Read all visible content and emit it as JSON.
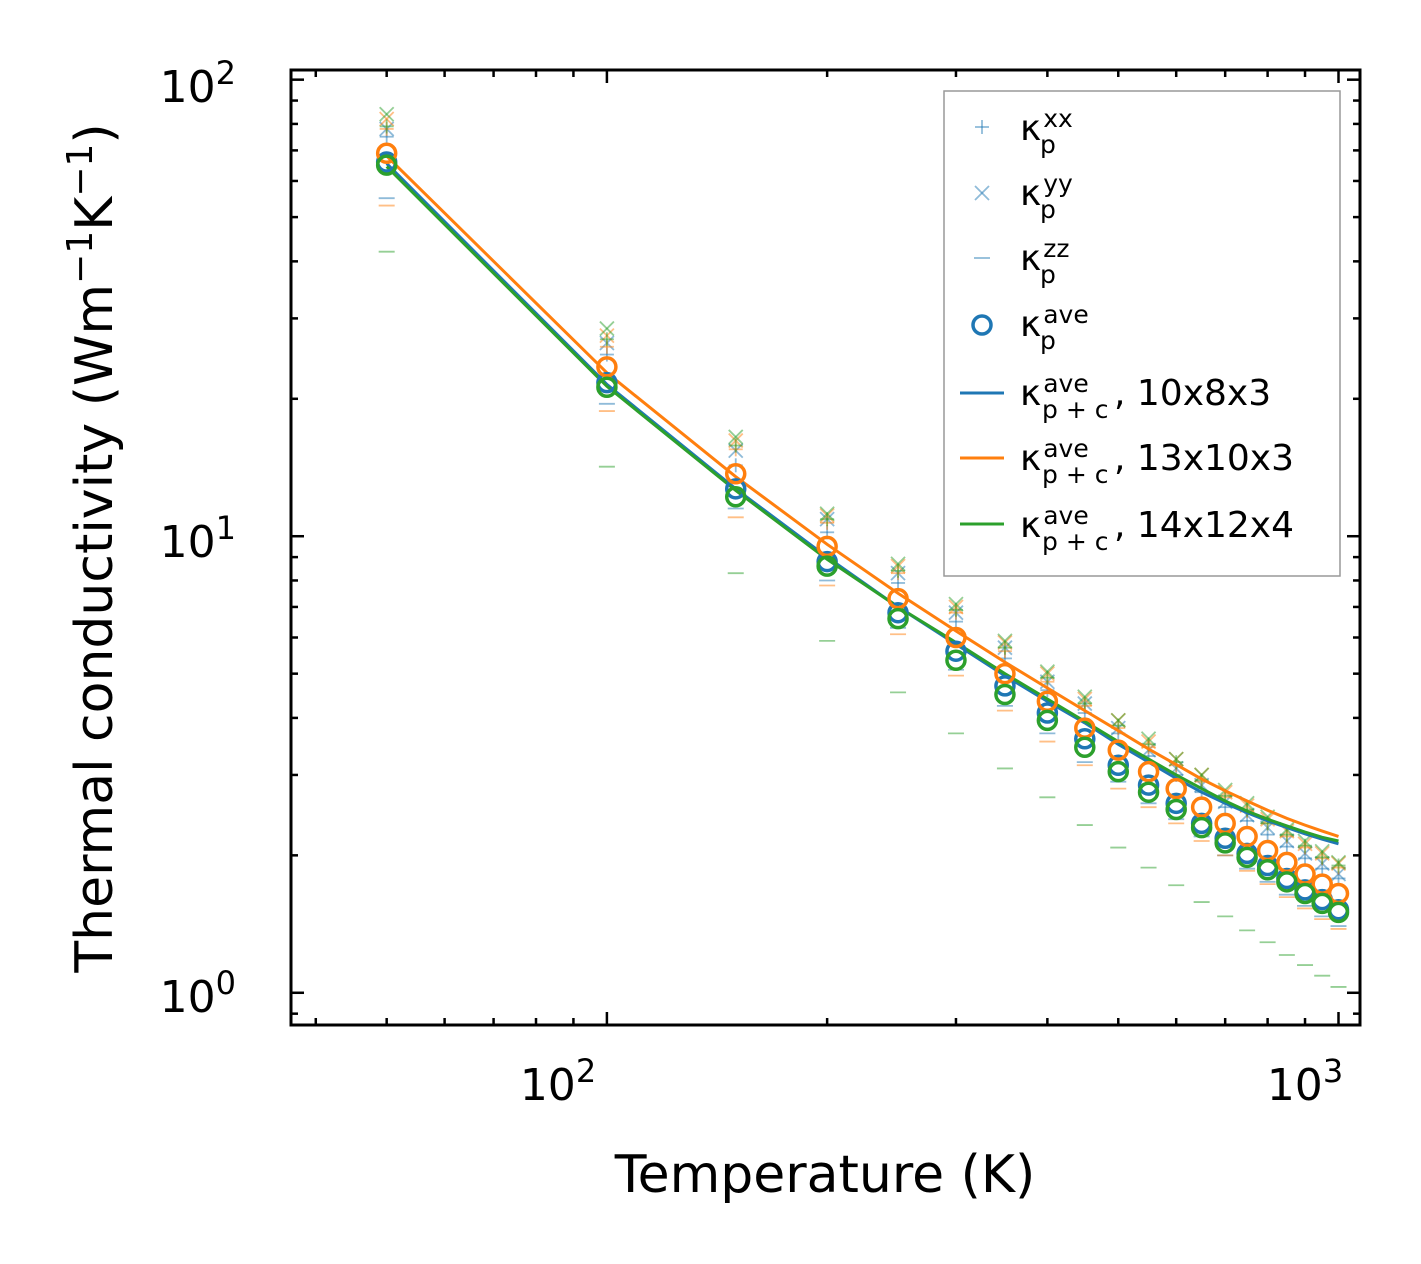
{
  "chart_data": {
    "type": "scatter",
    "xlabel": "Temperature (K)",
    "ylabel": "Thermal conductivity (Wm",
    "ylabel_sup1": "−1",
    "ylabel_mid": "K",
    "ylabel_sup2": "−1",
    "ylabel_end": ")",
    "xscale": "log",
    "yscale": "log",
    "xlim": [
      37,
      1070
    ],
    "ylim": [
      0.85,
      105
    ],
    "x_ticks": [
      {
        "value": 100,
        "base": "10",
        "exp": "2"
      },
      {
        "value": 1000,
        "base": "10",
        "exp": "3"
      }
    ],
    "y_ticks": [
      {
        "value": 1,
        "base": "10",
        "exp": "0"
      },
      {
        "value": 10,
        "base": "10",
        "exp": "1"
      },
      {
        "value": 100,
        "base": "10",
        "exp": "2"
      }
    ],
    "legend_position": "top-right",
    "x": [
      50,
      100,
      150,
      200,
      250,
      300,
      350,
      400,
      450,
      500,
      550,
      600,
      650,
      700,
      750,
      800,
      850,
      900,
      950,
      1000
    ],
    "series": [
      {
        "name": "10x8x3",
        "color": "#1f77b4",
        "xx": [
          75,
          25,
          14.3,
          10.2,
          7.9,
          6.5,
          5.4,
          4.6,
          4.1,
          3.7,
          3.3,
          3.0,
          2.75,
          2.55,
          2.38,
          2.22,
          2.09,
          1.97,
          1.87,
          1.78
        ],
        "yy": [
          78,
          26.5,
          15.4,
          10.9,
          8.3,
          6.8,
          5.7,
          4.8,
          4.3,
          3.8,
          3.4,
          3.1,
          2.85,
          2.62,
          2.45,
          2.3,
          2.15,
          2.02,
          1.92,
          1.82
        ],
        "zz": [
          55,
          19.5,
          11.5,
          8.0,
          6.3,
          5.1,
          4.25,
          3.7,
          3.2,
          2.9,
          2.6,
          2.4,
          2.2,
          2.0,
          1.87,
          1.75,
          1.64,
          1.55,
          1.47,
          1.4
        ],
        "ave": [
          66,
          21.7,
          12.7,
          8.8,
          6.8,
          5.6,
          4.7,
          4.1,
          3.6,
          3.15,
          2.85,
          2.6,
          2.35,
          2.18,
          2.02,
          1.9,
          1.78,
          1.68,
          1.6,
          1.52
        ],
        "total": [
          65.5,
          21.5,
          12.7,
          9.0,
          7.0,
          5.8,
          4.95,
          4.35,
          3.9,
          3.5,
          3.2,
          2.95,
          2.75,
          2.6,
          2.48,
          2.38,
          2.3,
          2.23,
          2.17,
          2.12
        ]
      },
      {
        "name": "13x10x3",
        "color": "#ff7f0e",
        "xx": [
          78,
          26,
          15.5,
          10.7,
          8.3,
          6.8,
          5.6,
          4.8,
          4.25,
          3.8,
          3.45,
          3.15,
          2.9,
          2.68,
          2.5,
          2.35,
          2.2,
          2.08,
          1.97,
          1.88
        ],
        "yy": [
          82,
          27.5,
          16.2,
          11.1,
          8.6,
          7.0,
          5.85,
          5.0,
          4.4,
          3.95,
          3.55,
          3.25,
          3.0,
          2.75,
          2.57,
          2.4,
          2.26,
          2.12,
          2.02,
          1.92
        ],
        "zz": [
          53,
          18.8,
          11.0,
          7.8,
          6.1,
          4.95,
          4.15,
          3.55,
          3.15,
          2.8,
          2.55,
          2.35,
          2.15,
          2.0,
          1.85,
          1.73,
          1.62,
          1.53,
          1.45,
          1.38
        ],
        "ave": [
          69,
          23.5,
          13.7,
          9.5,
          7.3,
          6.0,
          5.0,
          4.35,
          3.8,
          3.4,
          3.05,
          2.8,
          2.55,
          2.35,
          2.2,
          2.05,
          1.93,
          1.82,
          1.73,
          1.65
        ],
        "total": [
          68,
          22.8,
          13.5,
          9.6,
          7.5,
          6.2,
          5.3,
          4.65,
          4.15,
          3.75,
          3.42,
          3.16,
          2.94,
          2.77,
          2.63,
          2.51,
          2.41,
          2.33,
          2.26,
          2.2
        ]
      },
      {
        "name": "14x12x4",
        "color": "#2ca02c",
        "xx": [
          79,
          27,
          15.8,
          10.9,
          8.4,
          6.9,
          5.7,
          4.9,
          4.3,
          3.85,
          3.5,
          3.2,
          2.92,
          2.7,
          2.52,
          2.35,
          2.22,
          2.1,
          1.98,
          1.9
        ],
        "yy": [
          84,
          28.5,
          16.5,
          11.2,
          8.7,
          7.1,
          5.9,
          5.05,
          4.45,
          3.95,
          3.6,
          3.25,
          3.0,
          2.78,
          2.6,
          2.43,
          2.28,
          2.15,
          2.04,
          1.93
        ],
        "zz": [
          42,
          14.2,
          8.3,
          5.9,
          4.55,
          3.7,
          3.1,
          2.68,
          2.33,
          2.08,
          1.88,
          1.72,
          1.58,
          1.47,
          1.37,
          1.29,
          1.21,
          1.15,
          1.09,
          1.03
        ],
        "ave": [
          65,
          21.2,
          12.2,
          8.6,
          6.6,
          5.35,
          4.5,
          3.95,
          3.45,
          3.05,
          2.75,
          2.52,
          2.3,
          2.13,
          1.98,
          1.86,
          1.75,
          1.65,
          1.57,
          1.5
        ],
        "total": [
          64.5,
          21.3,
          12.6,
          8.9,
          7.0,
          5.85,
          5.0,
          4.4,
          3.93,
          3.55,
          3.25,
          3.0,
          2.8,
          2.63,
          2.5,
          2.4,
          2.32,
          2.25,
          2.19,
          2.15
        ]
      }
    ],
    "legend": [
      {
        "kind": "plus",
        "sym": "κ",
        "sup": "xx",
        "sub": "p",
        "suffix": ""
      },
      {
        "kind": "cross",
        "sym": "κ",
        "sup": "yy",
        "sub": "p",
        "suffix": ""
      },
      {
        "kind": "dash",
        "sym": "κ",
        "sup": "zz",
        "sub": "p",
        "suffix": ""
      },
      {
        "kind": "circle",
        "sym": "κ",
        "sup": "ave",
        "sub": "p",
        "suffix": ""
      },
      {
        "kind": "line",
        "color": "#1f77b4",
        "sym": "κ",
        "sup": "ave",
        "sub": "p + c",
        "suffix": ", 10x8x3"
      },
      {
        "kind": "line",
        "color": "#ff7f0e",
        "sym": "κ",
        "sup": "ave",
        "sub": "p + c",
        "suffix": ", 13x10x3"
      },
      {
        "kind": "line",
        "color": "#2ca02c",
        "sym": "κ",
        "sup": "ave",
        "sub": "p + c",
        "suffix": ", 14x12x4"
      }
    ],
    "legend_marker_color": "#1f77b4"
  }
}
